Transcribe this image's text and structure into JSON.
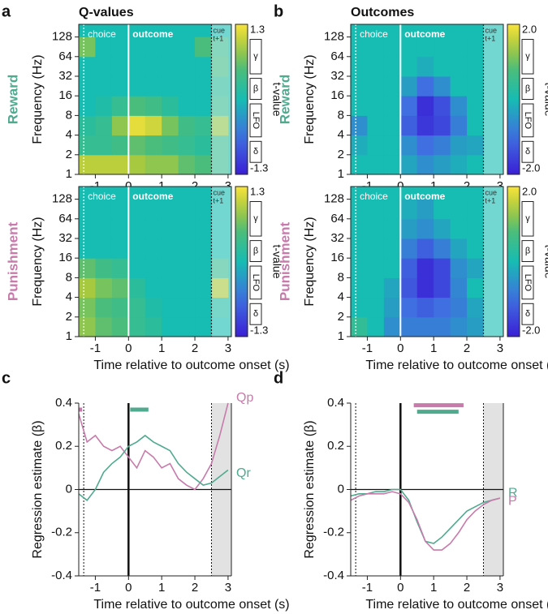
{
  "chart_data": [
    {
      "type": "heatmap",
      "panel_label": "a",
      "title": "Q-values",
      "row_label": "Reward",
      "row_color": "#4faa8e",
      "ylabel": "Frequency (Hz)",
      "log_y": true,
      "ylim": [
        1,
        200
      ],
      "yticks": [
        1,
        2,
        4,
        8,
        16,
        32,
        64,
        128
      ],
      "xlim": [
        -1.5,
        3.1
      ],
      "xticks": [
        -1,
        0,
        1,
        2,
        3
      ],
      "time_edges": [
        -1.5,
        -1,
        -0.5,
        0,
        0.5,
        1,
        1.5,
        2,
        2.5,
        3
      ],
      "freq_edges": [
        1,
        2,
        4,
        8,
        16,
        32,
        64,
        128
      ],
      "values": [
        [
          1.0,
          1.0,
          1.0,
          0.9,
          0.8,
          0.8,
          0.6,
          0.5,
          0.3
        ],
        [
          0.3,
          0.3,
          0.4,
          0.6,
          0.5,
          0.4,
          0.3,
          0.2,
          0.3
        ],
        [
          0.2,
          0.3,
          0.8,
          1.2,
          1.1,
          0.7,
          0.4,
          0.3,
          0.8
        ],
        [
          0,
          0.1,
          0.3,
          0.5,
          0.4,
          0.2,
          0,
          0,
          0.3
        ],
        [
          0,
          0,
          0,
          0,
          0,
          0,
          0,
          0,
          0.2
        ],
        [
          0,
          0,
          0,
          0,
          0,
          0,
          0,
          0,
          0.4
        ],
        [
          0.7,
          0,
          0,
          0,
          0,
          0,
          0,
          0.5,
          0.3
        ]
      ],
      "clim": [
        -1.3,
        1.3
      ],
      "cticks": [
        1.3,
        -1.3
      ],
      "colorbar_label": "t-value",
      "bands": [
        "γ",
        "β",
        "LFO",
        "δ"
      ],
      "events": [
        {
          "label": "choice",
          "time": -1.35
        },
        {
          "label": "outcome",
          "time": 0
        },
        {
          "label": "cue",
          "sublabel": "t+1",
          "time": 2.5
        }
      ]
    },
    {
      "type": "heatmap",
      "row_label": "Punishment",
      "row_color": "#c77bab",
      "xlabel": "Time relative to outcome onset (s)",
      "ylabel": "Frequency (Hz)",
      "log_y": true,
      "ylim": [
        1,
        200
      ],
      "yticks": [
        1,
        2,
        4,
        8,
        16,
        32,
        64,
        128
      ],
      "xlim": [
        -1.5,
        3.1
      ],
      "xticks": [
        -1,
        0,
        1,
        2,
        3
      ],
      "time_edges": [
        -1.5,
        -1,
        -0.5,
        0,
        0.5,
        1,
        1.5,
        2,
        2.5,
        3
      ],
      "freq_edges": [
        1,
        2,
        4,
        8,
        16,
        32,
        64,
        128
      ],
      "values": [
        [
          0.8,
          0.6,
          0.5,
          0.3,
          0.2,
          0,
          0,
          0,
          0
        ],
        [
          0.7,
          0.5,
          0.4,
          0.3,
          0.1,
          0,
          0,
          0,
          0.1
        ],
        [
          0.9,
          0.7,
          0.6,
          0.2,
          0,
          0,
          0,
          0,
          0.9
        ],
        [
          0.6,
          0.4,
          0.3,
          0,
          0,
          0,
          0,
          0,
          0.3
        ],
        [
          0,
          0,
          0,
          0,
          0,
          0,
          0,
          0,
          0
        ],
        [
          0,
          0,
          0,
          0,
          0,
          0,
          0,
          0,
          0
        ],
        [
          0,
          0,
          0,
          0,
          0,
          0,
          0,
          0,
          0
        ]
      ],
      "clim": [
        -1.3,
        1.3
      ],
      "cticks": [
        1.3,
        -1.3
      ],
      "colorbar_label": "t-value",
      "bands": [
        "γ",
        "β",
        "LFO",
        "δ"
      ],
      "events": [
        {
          "label": "choice",
          "time": -1.35
        },
        {
          "label": "outcome",
          "time": 0
        },
        {
          "label": "cue",
          "sublabel": "t+1",
          "time": 2.5
        }
      ]
    },
    {
      "type": "heatmap",
      "panel_label": "b",
      "title": "Outcomes",
      "row_label": "Reward",
      "row_color": "#4faa8e",
      "ylabel": "Frequency (Hz)",
      "log_y": true,
      "ylim": [
        1,
        200
      ],
      "yticks": [
        1,
        2,
        4,
        8,
        16,
        32,
        64,
        128
      ],
      "xlim": [
        -1.5,
        3.1
      ],
      "xticks": [
        -1,
        0,
        1,
        2,
        3
      ],
      "time_edges": [
        -1.5,
        -1,
        -0.5,
        0,
        0.5,
        1,
        1.5,
        2,
        2.5,
        3
      ],
      "freq_edges": [
        1,
        2,
        4,
        8,
        16,
        32,
        64,
        128
      ],
      "values": [
        [
          0,
          0,
          0,
          -0.3,
          -0.6,
          -0.4,
          -0.2,
          0,
          0
        ],
        [
          -0.2,
          0,
          0,
          -0.6,
          -1.0,
          -0.8,
          -0.4,
          -0.3,
          0
        ],
        [
          -0.6,
          0,
          0,
          -1.2,
          -1.7,
          -1.5,
          -0.8,
          0,
          0
        ],
        [
          0,
          0,
          0,
          -1.0,
          -1.8,
          -1.4,
          -0.6,
          0,
          0
        ],
        [
          0,
          0,
          0,
          -0.4,
          -1.0,
          -0.6,
          0,
          0,
          0
        ],
        [
          0,
          0,
          0,
          0,
          -0.2,
          0,
          0,
          0,
          0
        ],
        [
          0,
          0,
          0,
          0,
          0,
          0,
          0,
          0,
          0
        ]
      ],
      "clim": [
        -2,
        2
      ],
      "cticks": [
        {
          "value": 2,
          "label": "2.0"
        },
        {
          "value": -2,
          "label": "-2.0"
        }
      ],
      "colorbar_label": "t-value",
      "bands": [
        "γ",
        "β",
        "LFO",
        "δ"
      ],
      "events": [
        {
          "label": "choice",
          "time": -1.35
        },
        {
          "label": "outcome",
          "time": 0
        },
        {
          "label": "cue",
          "sublabel": "t+1",
          "time": 2.5
        }
      ]
    },
    {
      "type": "heatmap",
      "row_label": "Punishment",
      "row_color": "#c77bab",
      "xlabel": "Time relative to outcome onset (s)",
      "ylabel": "Frequency (Hz)",
      "log_y": true,
      "ylim": [
        1,
        200
      ],
      "yticks": [
        1,
        2,
        4,
        8,
        16,
        32,
        64,
        128
      ],
      "xlim": [
        -1.5,
        3.1
      ],
      "xticks": [
        -1,
        0,
        1,
        2,
        3
      ],
      "time_edges": [
        -1.5,
        -1,
        -0.5,
        0,
        0.5,
        1,
        1.5,
        2,
        2.5,
        3
      ],
      "freq_edges": [
        1,
        2,
        4,
        8,
        16,
        32,
        64,
        128
      ],
      "values": [
        [
          0.4,
          0,
          -0.6,
          -0.8,
          -0.8,
          -0.8,
          -0.6,
          -0.4,
          0
        ],
        [
          0,
          0,
          -0.4,
          -1.0,
          -1.2,
          -1.0,
          -0.8,
          -0.3,
          0
        ],
        [
          0,
          0,
          -0.3,
          -1.3,
          -1.8,
          -1.5,
          -0.7,
          0,
          0
        ],
        [
          0,
          0,
          0,
          -1.2,
          -1.8,
          -1.5,
          -0.6,
          -0.3,
          0
        ],
        [
          0,
          0,
          0,
          -0.8,
          -1.2,
          -0.8,
          -0.3,
          0,
          0
        ],
        [
          0,
          0,
          0,
          -0.4,
          -0.6,
          -0.3,
          0,
          0,
          0
        ],
        [
          0,
          0,
          0,
          -0.2,
          -0.4,
          0,
          0,
          0,
          0
        ]
      ],
      "clim": [
        -2,
        2
      ],
      "cticks": [
        {
          "value": 2,
          "label": "2.0"
        },
        {
          "value": -2,
          "label": "-2.0"
        }
      ],
      "colorbar_label": "t-value",
      "bands": [
        "γ",
        "β",
        "LFO",
        "δ"
      ],
      "events": [
        {
          "label": "choice",
          "time": -1.35
        },
        {
          "label": "outcome",
          "time": 0
        },
        {
          "label": "cue",
          "sublabel": "t+1",
          "time": 2.5
        }
      ]
    },
    {
      "type": "line",
      "panel_label": "c",
      "xlabel": "Time relative to outcome onset (s)",
      "ylabel": "Regression estimate (β)",
      "xlim": [
        -1.5,
        3.1
      ],
      "xticks": [
        -1,
        0,
        1,
        2,
        3
      ],
      "ylim": [
        -0.4,
        0.4
      ],
      "yticks": [
        -0.4,
        -0.2,
        0,
        0.2,
        0.4
      ],
      "x": [
        -1.5,
        -1.25,
        -1,
        -0.75,
        -0.5,
        -0.25,
        0,
        0.25,
        0.5,
        0.75,
        1,
        1.25,
        1.5,
        1.75,
        2,
        2.25,
        2.5,
        2.75,
        3
      ],
      "series": [
        {
          "name": "Qp",
          "color": "#c77bab",
          "values": [
            0.35,
            0.22,
            0.25,
            0.2,
            0.18,
            0.2,
            0.15,
            0.1,
            0.18,
            0.15,
            0.1,
            0.12,
            0.05,
            0.02,
            0,
            0.05,
            0.12,
            0.25,
            0.4
          ]
        },
        {
          "name": "Qr",
          "color": "#4faa8e",
          "values": [
            -0.02,
            -0.05,
            0,
            0.08,
            0.12,
            0.15,
            0.2,
            0.22,
            0.25,
            0.22,
            0.2,
            0.18,
            0.12,
            0.08,
            0.05,
            0.02,
            0.03,
            0.06,
            0.09
          ]
        }
      ],
      "sig_bars": [
        {
          "color": "#c77bab",
          "x": [
            -1.5,
            -1.4
          ],
          "y": 0.37
        },
        {
          "color": "#4faa8e",
          "x": [
            0.05,
            0.6
          ],
          "y": 0.37
        }
      ],
      "events": [
        {
          "time": -1.35
        },
        {
          "time": 0
        },
        {
          "time": 2.5
        }
      ]
    },
    {
      "type": "line",
      "panel_label": "d",
      "xlabel": "Time relative to outcome onset (s)",
      "ylabel": "Regression estimate (β)",
      "xlim": [
        -1.5,
        3.1
      ],
      "xticks": [
        -1,
        0,
        1,
        2,
        3
      ],
      "ylim": [
        -0.4,
        0.4
      ],
      "yticks": [
        -0.4,
        -0.2,
        0,
        0.2,
        0.4
      ],
      "x": [
        -1.5,
        -1.25,
        -1,
        -0.75,
        -0.5,
        -0.25,
        0,
        0.25,
        0.5,
        0.75,
        1,
        1.25,
        1.5,
        1.75,
        2,
        2.25,
        2.5,
        2.75,
        3
      ],
      "series": [
        {
          "name": "R",
          "color": "#4faa8e",
          "values": [
            -0.03,
            -0.02,
            -0.02,
            -0.01,
            -0.01,
            0,
            0,
            -0.05,
            -0.15,
            -0.24,
            -0.25,
            -0.22,
            -0.18,
            -0.14,
            -0.1,
            -0.08,
            -0.06,
            -0.05,
            -0.04
          ]
        },
        {
          "name": "P",
          "color": "#c77bab",
          "values": [
            -0.05,
            -0.03,
            -0.02,
            -0.02,
            -0.02,
            -0.01,
            -0.02,
            -0.06,
            -0.14,
            -0.24,
            -0.28,
            -0.28,
            -0.25,
            -0.2,
            -0.14,
            -0.1,
            -0.07,
            -0.05,
            -0.04
          ]
        }
      ],
      "sig_bars": [
        {
          "color": "#c77bab",
          "x": [
            0.4,
            1.9
          ],
          "y": 0.39
        },
        {
          "color": "#4faa8e",
          "x": [
            0.5,
            1.75
          ],
          "y": 0.36
        }
      ],
      "events": [
        {
          "time": -1.35
        },
        {
          "time": 0
        },
        {
          "time": 2.5
        }
      ]
    }
  ]
}
